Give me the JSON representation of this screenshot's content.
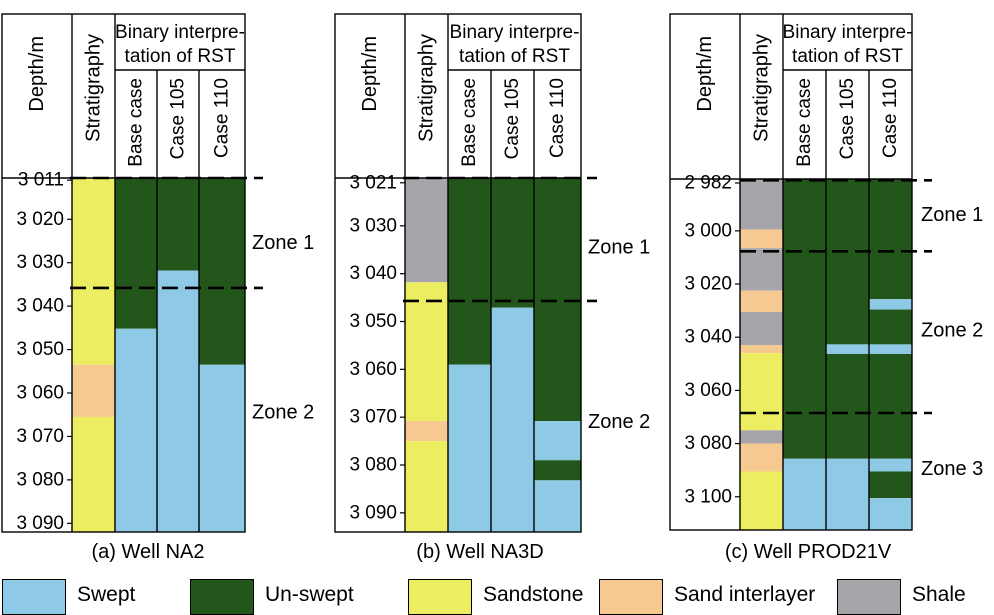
{
  "colors": {
    "swept": "#8ecae6",
    "unswept": "#23561a",
    "sandstone": "#eced60",
    "sand_interlayer": "#f5c98f",
    "shale": "#a7a5aa"
  },
  "headers": {
    "depth": "Depth/m",
    "stratigraphy": "Stratigraphy",
    "binary_interpretation": [
      "Binary interpre-",
      "tation of RST"
    ],
    "cases": [
      "Base case",
      "Case 105",
      "Case 110"
    ]
  },
  "wells": [
    {
      "caption": "(a) Well NA2",
      "depth_range": [
        3010.5,
        3092
      ],
      "depth_ticks": [
        "3 011",
        "3 020",
        "3 030",
        "3 040",
        "3 050",
        "3 060",
        "3 070",
        "3 080",
        "3 090"
      ],
      "depth_tick_values": [
        3011,
        3020,
        3030,
        3040,
        3050,
        3060,
        3070,
        3080,
        3090
      ],
      "stratigraphy": [
        {
          "from": 3010.5,
          "to": 3053.5,
          "type": "sandstone"
        },
        {
          "from": 3053.5,
          "to": 3065.5,
          "type": "sand_interlayer"
        },
        {
          "from": 3065.5,
          "to": 3092,
          "type": "sandstone"
        }
      ],
      "cases": [
        [
          {
            "from": 3010.5,
            "to": 3045.2,
            "state": "unswept"
          },
          {
            "from": 3045.2,
            "to": 3092,
            "state": "swept"
          }
        ],
        [
          {
            "from": 3010.5,
            "to": 3031.8,
            "state": "unswept"
          },
          {
            "from": 3031.8,
            "to": 3092,
            "state": "swept"
          }
        ],
        [
          {
            "from": 3010.5,
            "to": 3053.5,
            "state": "unswept"
          },
          {
            "from": 3053.5,
            "to": 3092,
            "state": "swept"
          }
        ]
      ],
      "zone_boundaries": [
        3010.5,
        3035.8
      ],
      "zones": [
        {
          "label": "Zone 1",
          "depth": 3025.5
        },
        {
          "label": "Zone 2",
          "depth": 3064.5
        }
      ]
    },
    {
      "caption": "(b) Well NA3D",
      "depth_range": [
        3020,
        3094
      ],
      "depth_ticks": [
        "3 021",
        "3 030",
        "3 040",
        "3 050",
        "3 060",
        "3 070",
        "3 080",
        "3 090"
      ],
      "depth_tick_values": [
        3021,
        3030,
        3040,
        3050,
        3060,
        3070,
        3080,
        3090
      ],
      "stratigraphy": [
        {
          "from": 3020,
          "to": 3041.8,
          "type": "shale"
        },
        {
          "from": 3041.8,
          "to": 3070.8,
          "type": "sandstone"
        },
        {
          "from": 3070.8,
          "to": 3075,
          "type": "sand_interlayer"
        },
        {
          "from": 3075,
          "to": 3094,
          "type": "sandstone"
        }
      ],
      "cases": [
        [
          {
            "from": 3020,
            "to": 3059,
            "state": "unswept"
          },
          {
            "from": 3059,
            "to": 3094,
            "state": "swept"
          }
        ],
        [
          {
            "from": 3020,
            "to": 3047.1,
            "state": "unswept"
          },
          {
            "from": 3047.1,
            "to": 3094,
            "state": "swept"
          }
        ],
        [
          {
            "from": 3020,
            "to": 3070.8,
            "state": "unswept"
          },
          {
            "from": 3070.8,
            "to": 3079,
            "state": "swept"
          },
          {
            "from": 3079,
            "to": 3083.2,
            "state": "unswept"
          },
          {
            "from": 3083.2,
            "to": 3094,
            "state": "swept"
          }
        ]
      ],
      "zone_boundaries": [
        3020,
        3045.7
      ],
      "zones": [
        {
          "label": "Zone 1",
          "depth": 3034.5
        },
        {
          "label": "Zone 2",
          "depth": 3071
        }
      ]
    },
    {
      "caption": "(c) Well PROD21V",
      "depth_range": [
        2980.5,
        3112.5
      ],
      "depth_ticks": [
        "2 982",
        "3 000",
        "3 020",
        "3 040",
        "3 060",
        "3 080",
        "3 100"
      ],
      "depth_tick_values": [
        2982,
        3000,
        3020,
        3040,
        3060,
        3080,
        3100
      ],
      "stratigraphy": [
        {
          "from": 2980.5,
          "to": 2999.5,
          "type": "shale"
        },
        {
          "from": 2999.5,
          "to": 3006.5,
          "type": "sand_interlayer"
        },
        {
          "from": 3006.5,
          "to": 3022.5,
          "type": "shale"
        },
        {
          "from": 3022.5,
          "to": 3030.5,
          "type": "sand_interlayer"
        },
        {
          "from": 3030.5,
          "to": 3043,
          "type": "shale"
        },
        {
          "from": 3043,
          "to": 3046,
          "type": "sand_interlayer"
        },
        {
          "from": 3046,
          "to": 3075,
          "type": "sandstone"
        },
        {
          "from": 3075,
          "to": 3080,
          "type": "shale"
        },
        {
          "from": 3080,
          "to": 3090.5,
          "type": "sand_interlayer"
        },
        {
          "from": 3090.5,
          "to": 3112.5,
          "type": "sandstone"
        }
      ],
      "cases": [
        [
          {
            "from": 2980.5,
            "to": 3085.7,
            "state": "unswept"
          },
          {
            "from": 3085.7,
            "to": 3112.5,
            "state": "swept"
          }
        ],
        [
          {
            "from": 2980.5,
            "to": 3042.7,
            "state": "unswept"
          },
          {
            "from": 3042.7,
            "to": 3046.3,
            "state": "swept"
          },
          {
            "from": 3046.3,
            "to": 3085.7,
            "state": "unswept"
          },
          {
            "from": 3085.7,
            "to": 3112.5,
            "state": "swept"
          }
        ],
        [
          {
            "from": 2980.5,
            "to": 3025.7,
            "state": "unswept"
          },
          {
            "from": 3025.7,
            "to": 3029.6,
            "state": "swept"
          },
          {
            "from": 3029.6,
            "to": 3042.7,
            "state": "unswept"
          },
          {
            "from": 3042.7,
            "to": 3046.3,
            "state": "swept"
          },
          {
            "from": 3046.3,
            "to": 3085.7,
            "state": "unswept"
          },
          {
            "from": 3085.7,
            "to": 3090.5,
            "state": "swept"
          },
          {
            "from": 3090.5,
            "to": 3100.5,
            "state": "unswept"
          },
          {
            "from": 3100.5,
            "to": 3112.5,
            "state": "swept"
          }
        ]
      ],
      "zone_boundaries": [
        2981,
        3007.7,
        3068.5
      ],
      "zones": [
        {
          "label": "Zone 1",
          "depth": 2994
        },
        {
          "label": "Zone 2",
          "depth": 3037.5
        },
        {
          "label": "Zone 3",
          "depth": 3089.5
        }
      ]
    }
  ],
  "legend": [
    {
      "key": "swept",
      "label": "Swept"
    },
    {
      "key": "unswept",
      "label": "Un-swept"
    },
    {
      "key": "sandstone",
      "label": "Sandstone"
    },
    {
      "key": "sand_interlayer",
      "label": "Sand interlayer"
    },
    {
      "key": "shale",
      "label": "Shale"
    }
  ]
}
